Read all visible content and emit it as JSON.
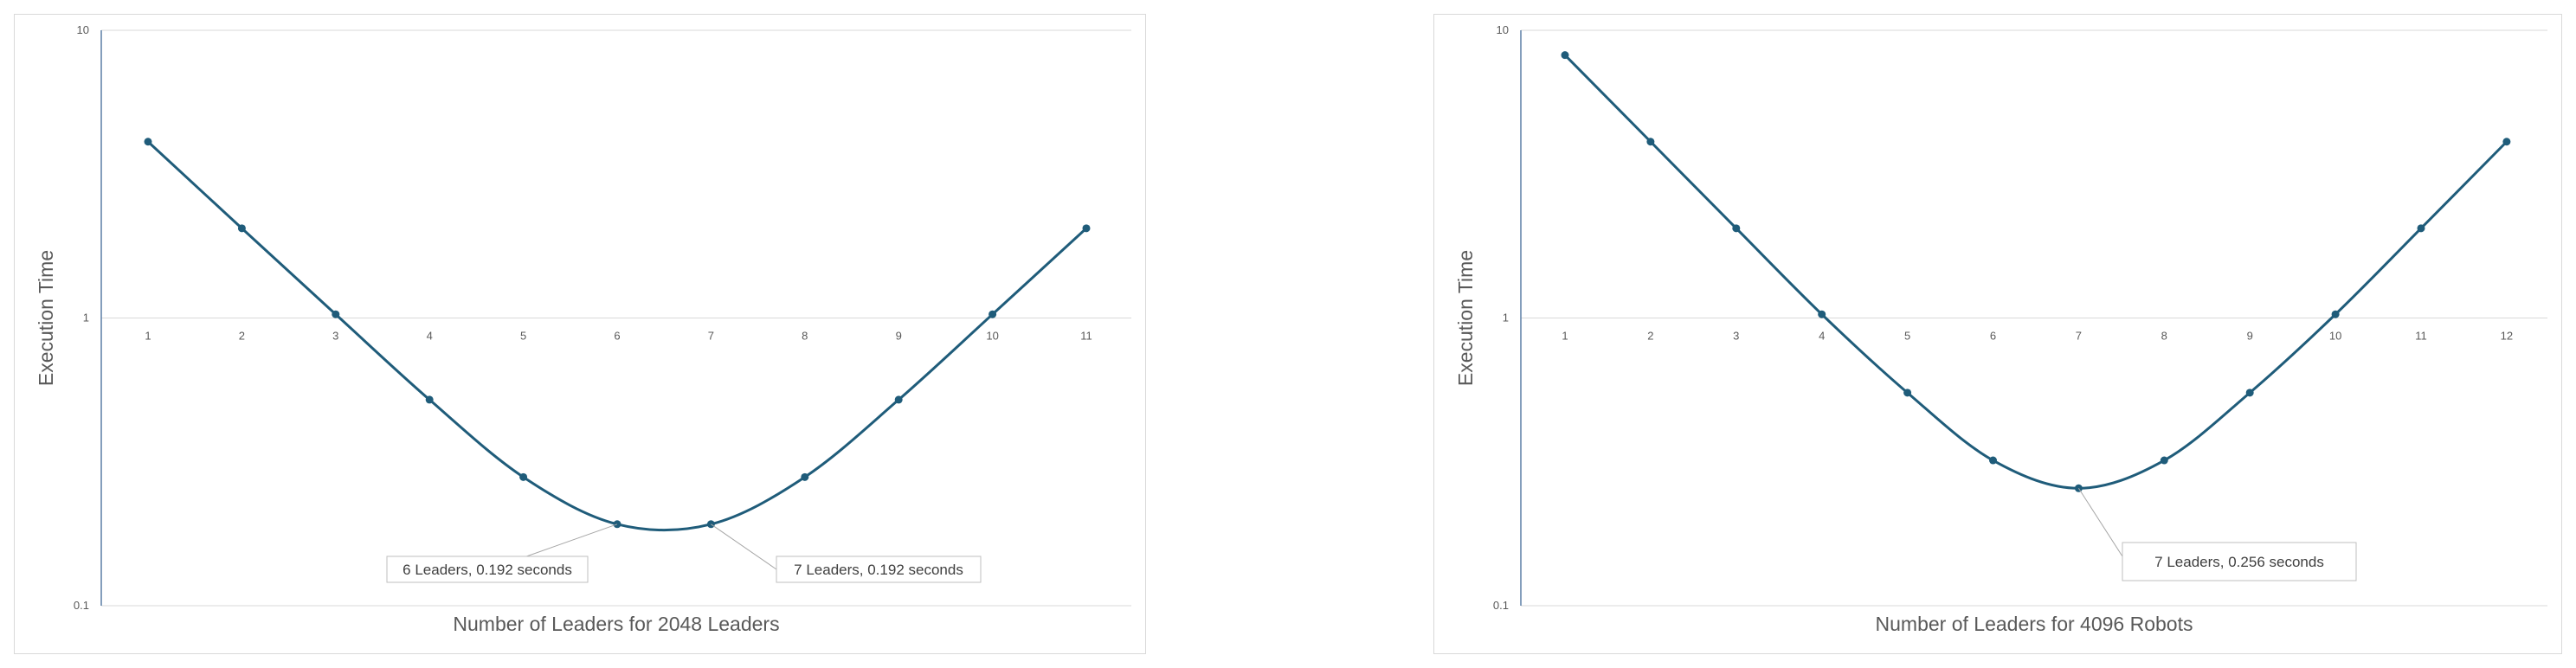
{
  "colors": {
    "line": "#1f5c7a",
    "marker": "#1f5c7a",
    "grid": "#d9d9d9",
    "axis": "#5b7fa6",
    "callout_border": "#bfbfbf",
    "leader_line": "#a6a6a6"
  },
  "chart_data": [
    {
      "type": "line",
      "title": "",
      "xlabel": "Number of Leaders for 2048 Leaders",
      "ylabel": "Execution Time",
      "yscale": "log",
      "ylim": [
        0.1,
        10
      ],
      "y_ticks": [
        "10",
        "1",
        "0.1"
      ],
      "categories": [
        "1",
        "2",
        "3",
        "4",
        "5",
        "6",
        "7",
        "8",
        "9",
        "10",
        "11"
      ],
      "series": [
        {
          "values": [
            4.1,
            2.05,
            1.03,
            0.52,
            0.28,
            0.192,
            0.192,
            0.28,
            0.52,
            1.03,
            2.05
          ]
        }
      ],
      "grid": true,
      "legend": "none",
      "annotations": [
        {
          "text": "6 Leaders, 0.192 seconds",
          "point_index": 5
        },
        {
          "text": "7 Leaders, 0.192 seconds",
          "point_index": 6
        }
      ]
    },
    {
      "type": "line",
      "title": "",
      "xlabel": "Number of Leaders for 4096 Robots",
      "ylabel": "Execution Time",
      "yscale": "log",
      "ylim": [
        0.1,
        10
      ],
      "y_ticks": [
        "10",
        "1",
        "0.1"
      ],
      "categories": [
        "1",
        "2",
        "3",
        "4",
        "5",
        "6",
        "7",
        "8",
        "9",
        "10",
        "11",
        "12"
      ],
      "series": [
        {
          "values": [
            8.2,
            4.1,
            2.05,
            1.03,
            0.55,
            0.32,
            0.256,
            0.32,
            0.55,
            1.03,
            2.05,
            4.1
          ]
        }
      ],
      "grid": true,
      "legend": "none",
      "annotations": [
        {
          "text": "7 Leaders, 0.256 seconds",
          "point_index": 6
        }
      ]
    }
  ]
}
